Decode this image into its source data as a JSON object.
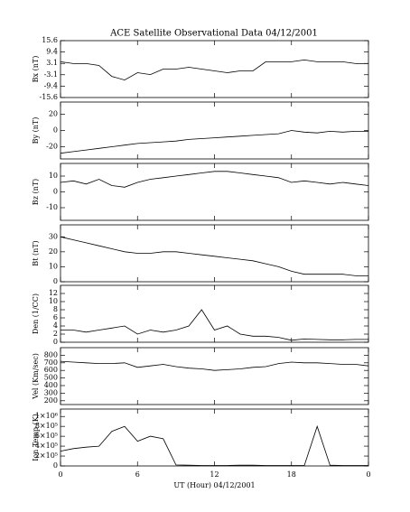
{
  "chart_data": [
    {
      "type": "line",
      "title": "ACE Satellite Observational Data   04/12/2001",
      "ylabel": "Bx (nT)",
      "ylim": [
        -15.6,
        15.6
      ],
      "yticks": [
        15.6,
        9.4,
        3.1,
        -3.1,
        -9.4,
        -15.6
      ],
      "x": [
        0,
        1,
        2,
        3,
        4,
        5,
        6,
        7,
        8,
        9,
        10,
        11,
        12,
        13,
        14,
        15,
        16,
        17,
        18,
        19,
        20,
        21,
        22,
        23,
        24
      ],
      "values": [
        4,
        3,
        3,
        2,
        -4,
        -6,
        -2,
        -3,
        0,
        0,
        1,
        0,
        -1,
        -2,
        -1,
        -1,
        4,
        4,
        4,
        5,
        4,
        4,
        4,
        3,
        3
      ]
    },
    {
      "type": "line",
      "ylabel": "By (nT)",
      "ylim": [
        -35,
        35
      ],
      "yticks": [
        20,
        0,
        -20
      ],
      "x": [
        0,
        1,
        2,
        3,
        4,
        5,
        6,
        7,
        8,
        9,
        10,
        11,
        12,
        13,
        14,
        15,
        16,
        17,
        18,
        19,
        20,
        21,
        22,
        23,
        24
      ],
      "values": [
        -28,
        -26,
        -24,
        -22,
        -20,
        -18,
        -16,
        -15,
        -14,
        -13,
        -11,
        -10,
        -9,
        -8,
        -7,
        -6,
        -5,
        -4,
        0,
        -2,
        -3,
        -1,
        -2,
        -1,
        -1
      ]
    },
    {
      "type": "line",
      "ylabel": "Bz (nT)",
      "ylim": [
        -18,
        18
      ],
      "yticks": [
        10,
        0,
        -10
      ],
      "x": [
        0,
        1,
        2,
        3,
        4,
        5,
        6,
        7,
        8,
        9,
        10,
        11,
        12,
        13,
        14,
        15,
        16,
        17,
        18,
        19,
        20,
        21,
        22,
        23,
        24
      ],
      "values": [
        6,
        7,
        5,
        8,
        4,
        3,
        6,
        8,
        9,
        10,
        11,
        12,
        13,
        13,
        12,
        11,
        10,
        9,
        6,
        7,
        6,
        5,
        6,
        5,
        4
      ]
    },
    {
      "type": "line",
      "ylabel": "Bt (nT)",
      "ylim": [
        0,
        38
      ],
      "yticks": [
        30,
        20,
        10,
        0
      ],
      "x": [
        0,
        1,
        2,
        3,
        4,
        5,
        6,
        7,
        8,
        9,
        10,
        11,
        12,
        13,
        14,
        15,
        16,
        17,
        18,
        19,
        20,
        21,
        22,
        23,
        24
      ],
      "values": [
        30,
        28,
        26,
        24,
        22,
        20,
        19,
        19,
        20,
        20,
        19,
        18,
        17,
        16,
        15,
        14,
        12,
        10,
        7,
        5,
        5,
        5,
        5,
        4,
        4
      ]
    },
    {
      "type": "line",
      "ylabel": "Den (1/CC)",
      "ylim": [
        0,
        14
      ],
      "yticks": [
        12,
        10,
        8,
        6,
        4,
        2,
        0
      ],
      "x": [
        0,
        1,
        2,
        3,
        4,
        5,
        6,
        7,
        8,
        9,
        10,
        11,
        12,
        13,
        14,
        15,
        16,
        17,
        18,
        19,
        20,
        21,
        22,
        23,
        24
      ],
      "values": [
        3,
        3,
        2.5,
        3,
        3.5,
        4,
        2,
        3,
        2.5,
        3,
        4,
        8,
        3,
        4,
        2,
        1.5,
        1.5,
        1.2,
        0.5,
        0.8,
        0.7,
        0.6,
        0.6,
        0.7,
        0.7
      ]
    },
    {
      "type": "line",
      "ylabel": "Vel (Km/sec)",
      "ylim": [
        150,
        900
      ],
      "yticks": [
        800,
        700,
        600,
        500,
        400,
        300,
        200
      ],
      "x": [
        0,
        1,
        2,
        3,
        4,
        5,
        6,
        7,
        8,
        9,
        10,
        11,
        12,
        13,
        14,
        15,
        16,
        17,
        18,
        19,
        20,
        21,
        22,
        23,
        24
      ],
      "values": [
        720,
        710,
        700,
        690,
        690,
        700,
        640,
        660,
        680,
        650,
        630,
        620,
        600,
        610,
        620,
        640,
        650,
        690,
        710,
        700,
        700,
        690,
        680,
        680,
        660
      ]
    },
    {
      "type": "line",
      "ylabel": "Ion Temp (K)",
      "ylim": [
        0,
        1150000
      ],
      "yticks": [
        {
          "value": 1000000,
          "label": "1×10⁶"
        },
        {
          "value": 800000,
          "label": "8×10⁵"
        },
        {
          "value": 600000,
          "label": "6×10⁵"
        },
        {
          "value": 400000,
          "label": "4×10⁵"
        },
        {
          "value": 200000,
          "label": "2×10⁵"
        },
        0
      ],
      "x": [
        0,
        1,
        2,
        3,
        4,
        5,
        6,
        7,
        8,
        9,
        10,
        11,
        12,
        13,
        14,
        15,
        16,
        17,
        18,
        19,
        20,
        21,
        22,
        23,
        24
      ],
      "values": [
        300000,
        350000,
        380000,
        400000,
        700000,
        800000,
        500000,
        600000,
        550000,
        20000,
        15000,
        10000,
        10000,
        10000,
        15000,
        15000,
        10000,
        10000,
        10000,
        10000,
        800000,
        15000,
        10000,
        10000,
        10000
      ],
      "xlabel": "UT (Hour)  04/12/2001",
      "xlim": [
        0,
        24
      ],
      "xticks": [
        0,
        6,
        12,
        18,
        {
          "value": 24,
          "label": "0"
        }
      ]
    }
  ]
}
